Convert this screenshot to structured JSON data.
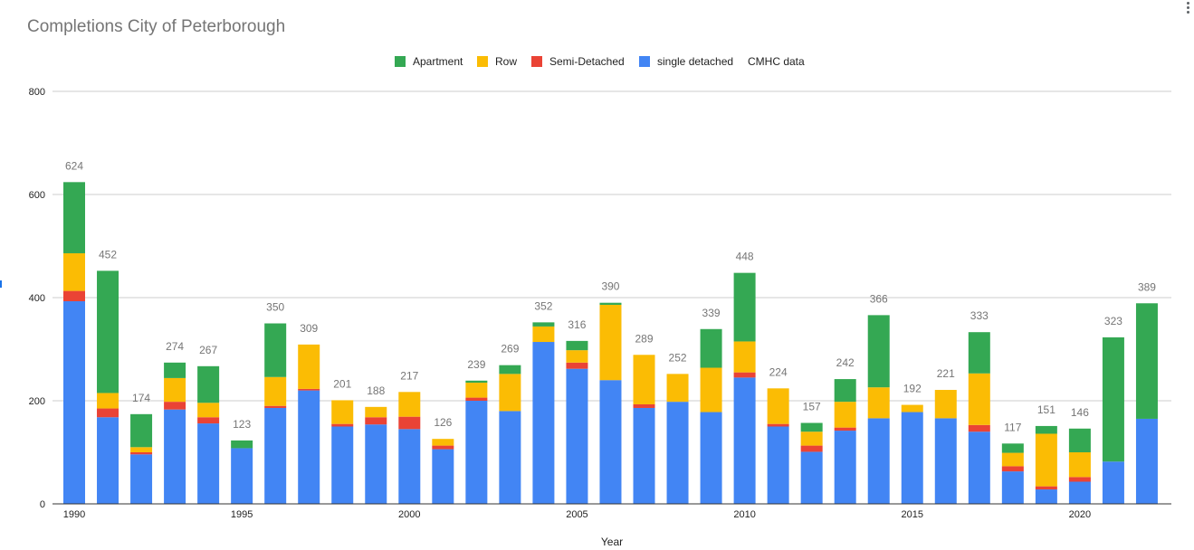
{
  "chart_data": {
    "type": "bar",
    "stacked": true,
    "title": "Completions City of Peterborough",
    "xlabel": "Year",
    "ylabel": "",
    "ylim": [
      0,
      800
    ],
    "yticks": [
      "0",
      "200",
      "400",
      "600",
      "800"
    ],
    "xtick_labels": [
      "1990",
      "1995",
      "2000",
      "2005",
      "2010",
      "2015",
      "2020"
    ],
    "grid": true,
    "legend_position": "top-center",
    "legend_note": "CMHC data",
    "categories": [
      "1990",
      "1991",
      "1992",
      "1993",
      "1994",
      "1995",
      "1996",
      "1997",
      "1998",
      "1999",
      "2000",
      "2001",
      "2002",
      "2003",
      "2004",
      "2005",
      "2006",
      "2007",
      "2008",
      "2009",
      "2010",
      "2011",
      "2012",
      "2013",
      "2014",
      "2015",
      "2016",
      "2017",
      "2018",
      "2019",
      "2020",
      "2021",
      "2022"
    ],
    "series": [
      {
        "name": "single detached",
        "color": "#4285f4",
        "values": [
          393,
          168,
          96,
          183,
          156,
          108,
          186,
          220,
          150,
          154,
          145,
          106,
          200,
          180,
          314,
          262,
          240,
          186,
          198,
          178,
          245,
          150,
          101,
          142,
          166,
          178,
          166,
          140,
          63,
          28,
          43,
          82,
          165
        ]
      },
      {
        "name": "Semi-Detached",
        "color": "#ea4335",
        "values": [
          20,
          17,
          4,
          15,
          12,
          0,
          4,
          3,
          5,
          14,
          24,
          7,
          6,
          0,
          0,
          12,
          0,
          7,
          0,
          0,
          10,
          5,
          12,
          6,
          0,
          0,
          0,
          13,
          10,
          6,
          9,
          0,
          0
        ]
      },
      {
        "name": "Row",
        "color": "#fbbc04",
        "values": [
          73,
          30,
          10,
          46,
          28,
          0,
          56,
          86,
          46,
          20,
          48,
          13,
          29,
          72,
          30,
          24,
          146,
          96,
          54,
          86,
          60,
          69,
          27,
          50,
          60,
          14,
          55,
          100,
          26,
          102,
          48,
          0,
          0
        ]
      },
      {
        "name": "Apartment",
        "color": "#34a853",
        "values": [
          138,
          237,
          64,
          30,
          71,
          15,
          104,
          0,
          0,
          0,
          0,
          0,
          4,
          17,
          8,
          18,
          4,
          0,
          0,
          75,
          133,
          0,
          17,
          44,
          140,
          0,
          0,
          80,
          18,
          15,
          46,
          241,
          224
        ]
      }
    ],
    "totals": [
      624,
      452,
      174,
      274,
      267,
      123,
      350,
      309,
      201,
      188,
      217,
      126,
      239,
      269,
      352,
      316,
      390,
      289,
      252,
      339,
      448,
      224,
      157,
      242,
      366,
      192,
      221,
      333,
      117,
      151,
      146,
      323,
      389
    ]
  },
  "legend_order": [
    "Apartment",
    "Row",
    "Semi-Detached",
    "single detached"
  ],
  "colors": {
    "text_dark": "#222222",
    "text_muted": "#757575",
    "grid": "#cccccc",
    "axis": "#333333"
  }
}
